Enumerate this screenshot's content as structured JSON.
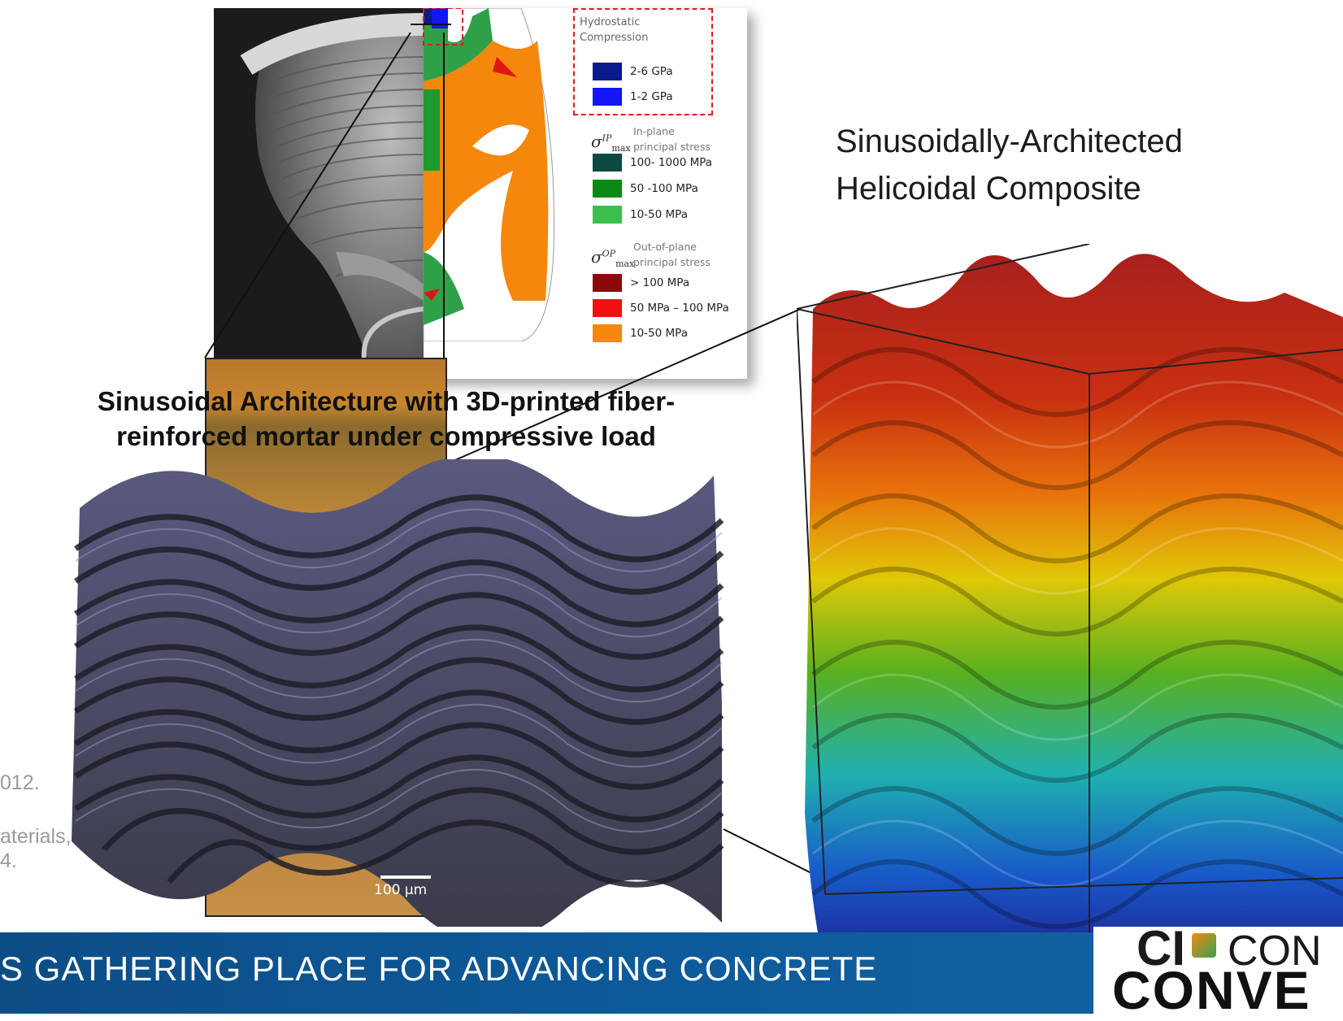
{
  "mortar_title": {
    "line1": "Sinusoidal Architecture with 3D-printed fiber-",
    "line2": "reinforced mortar under compressive load"
  },
  "helicoidal_title": {
    "line1": "Sinusoidally-Architected",
    "line2": "Helicoidal  Composite"
  },
  "legend": {
    "hydro_title_1": "Hydrostatic",
    "hydro_title_2": "Compression",
    "hydro_items": [
      {
        "label": "2-6 GPa",
        "color": "#0a1a8a"
      },
      {
        "label": "1-2 GPa",
        "color": "#1515f5"
      }
    ],
    "ip_symbol": "σ",
    "ip_sup": "IP",
    "ip_sub": "max",
    "ip_desc_1": "In-plane",
    "ip_desc_2": "principal stress",
    "ip_items": [
      {
        "label": "100- 1000 MPa",
        "color": "#0c4a40"
      },
      {
        "label": "50 -100 MPa",
        "color": "#0a8a14"
      },
      {
        "label": "10-50  MPa",
        "color": "#3bbf4e"
      }
    ],
    "op_symbol": "σ",
    "op_sup": "OP",
    "op_sub": "max",
    "op_desc_1": "Out-of-plane",
    "op_desc_2": "principal stress",
    "op_items": [
      {
        "label": "> 100 MPa",
        "color": "#8a0a0a"
      },
      {
        "label": "50 MPa – 100 MPa",
        "color": "#f01010"
      },
      {
        "label": "10-50 MPa",
        "color": "#f5870d"
      }
    ]
  },
  "scale_bar": "100 µm",
  "reference_text": {
    "line1": "012.",
    "line2": "aterials,",
    "line3": "4."
  },
  "footer": {
    "text": "S GATHERING PLACE FOR ADVANCING CONCRETE",
    "color": "#0d4d86"
  },
  "logo": {
    "top": "CI",
    "top_right": "CON",
    "bottom": "CONVE"
  }
}
